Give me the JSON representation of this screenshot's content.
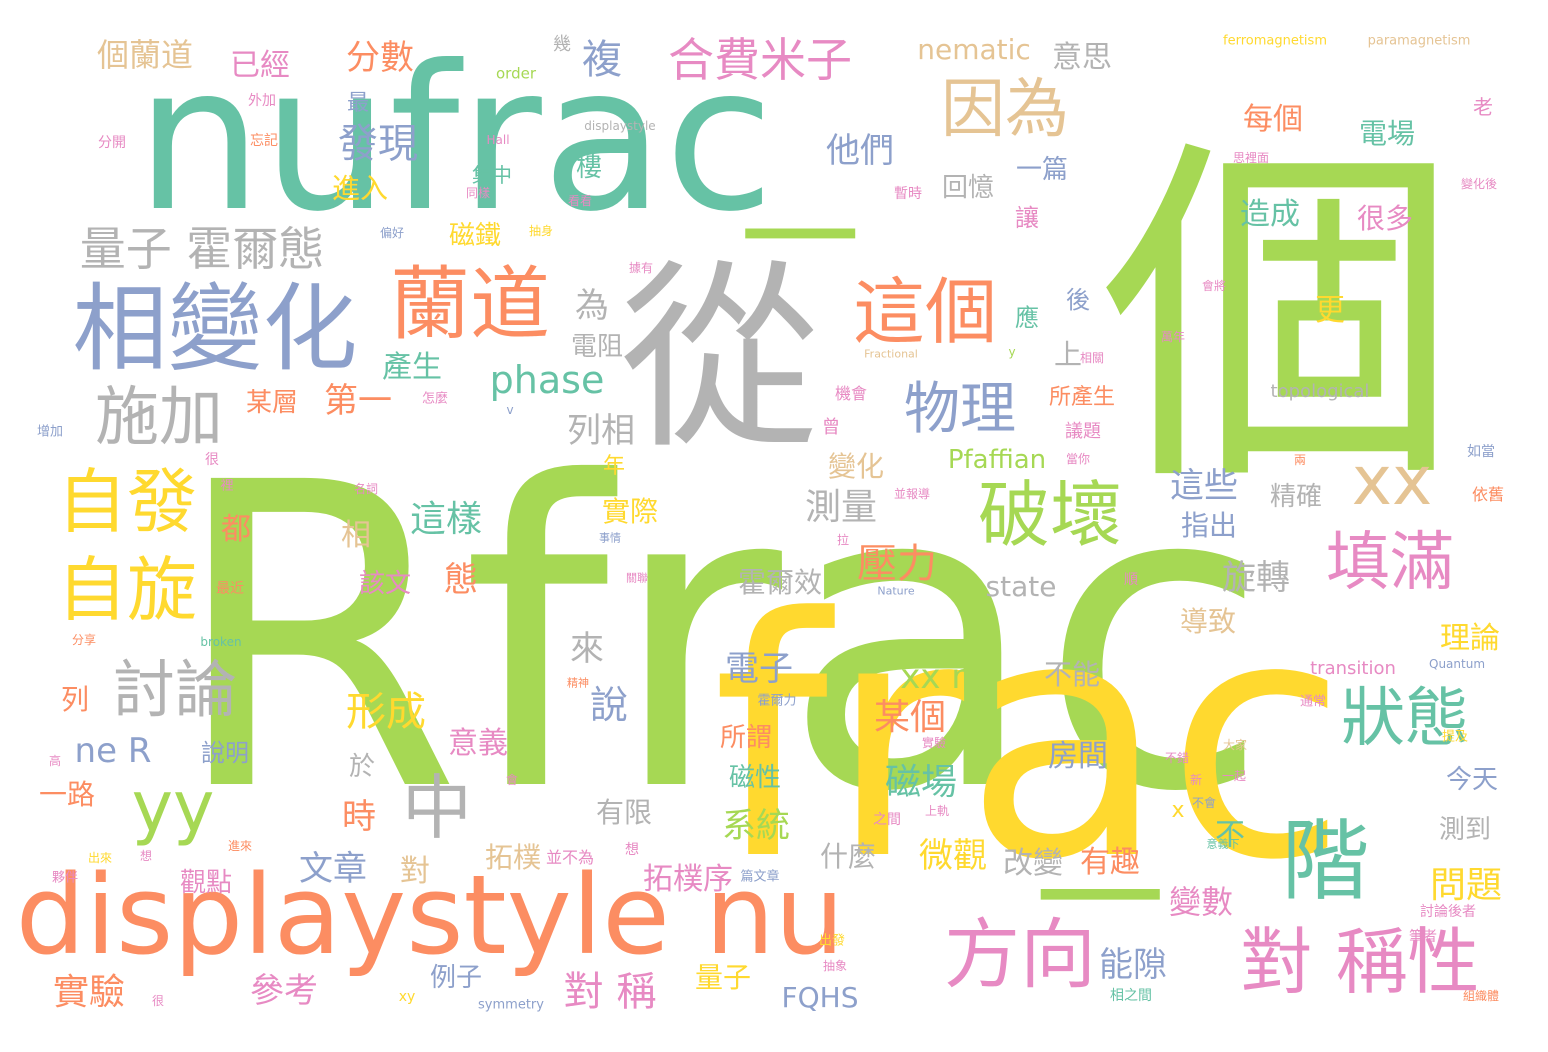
{
  "palette": {
    "green": "#a6d854",
    "teal": "#66c2a5",
    "yellow": "#ffd92f",
    "orange": "#fc8d62",
    "blue": "#8da0cb",
    "pink": "#e78ac3",
    "tan": "#e5c494",
    "gray": "#b3b3b3"
  },
  "words": [
    {
      "text": "個",
      "color": "green"
    },
    {
      "text": "Rfrac",
      "color": "green"
    },
    {
      "text": "frac",
      "color": "yellow"
    },
    {
      "text": "nufrac",
      "color": "teal"
    },
    {
      "text": "從",
      "color": "gray"
    },
    {
      "text": "一",
      "color": "green"
    },
    {
      "text": "一",
      "color": "green"
    },
    {
      "text": "displaystyle nu",
      "color": "orange"
    },
    {
      "text": "相變化",
      "color": "blue"
    },
    {
      "text": "蘭道",
      "color": "orange"
    },
    {
      "text": "這個",
      "color": "orange"
    },
    {
      "text": "破壞",
      "color": "green"
    },
    {
      "text": "方向",
      "color": "pink"
    },
    {
      "text": "對 稱性",
      "color": "pink"
    },
    {
      "text": "xx",
      "color": "tan"
    },
    {
      "text": "因為",
      "color": "tan"
    },
    {
      "text": "物理",
      "color": "blue"
    },
    {
      "text": "中",
      "color": "gray"
    },
    {
      "text": "yy",
      "color": "green"
    },
    {
      "text": "自發",
      "color": "yellow"
    },
    {
      "text": "自旋",
      "color": "yellow"
    },
    {
      "text": "施加",
      "color": "gray"
    },
    {
      "text": "討論",
      "color": "gray"
    },
    {
      "text": "狀態",
      "color": "teal"
    },
    {
      "text": "填滿",
      "color": "pink"
    },
    {
      "text": "階",
      "color": "teal"
    },
    {
      "text": "量子 霍爾態",
      "color": "gray"
    },
    {
      "text": "合費米子",
      "color": "pink"
    },
    {
      "text": "發現",
      "color": "blue"
    },
    {
      "text": "複",
      "color": "blue"
    },
    {
      "text": "分數",
      "color": "orange"
    },
    {
      "text": "已經",
      "color": "pink"
    },
    {
      "text": "個蘭道",
      "color": "tan"
    },
    {
      "text": "nematic",
      "color": "tan"
    },
    {
      "text": "意思",
      "color": "gray"
    },
    {
      "text": "他們",
      "color": "blue"
    },
    {
      "text": "回憶",
      "color": "gray"
    },
    {
      "text": "一篇",
      "color": "blue"
    },
    {
      "text": "每個",
      "color": "orange"
    },
    {
      "text": "電場",
      "color": "teal"
    },
    {
      "text": "造成",
      "color": "teal"
    },
    {
      "text": "很多",
      "color": "pink"
    },
    {
      "text": "更",
      "color": "yellow"
    },
    {
      "text": "phase",
      "color": "teal"
    },
    {
      "text": "為",
      "color": "gray"
    },
    {
      "text": "電阻",
      "color": "gray"
    },
    {
      "text": "產生",
      "color": "teal"
    },
    {
      "text": "某層",
      "color": "orange"
    },
    {
      "text": "第一",
      "color": "orange"
    },
    {
      "text": "列相",
      "color": "gray"
    },
    {
      "text": "ne R",
      "color": "blue"
    },
    {
      "text": "xx ne",
      "color": "green"
    },
    {
      "text": "壓力",
      "color": "orange"
    },
    {
      "text": "這些",
      "color": "blue"
    },
    {
      "text": "精確",
      "color": "gray"
    },
    {
      "text": "指出",
      "color": "blue"
    },
    {
      "text": "旋轉",
      "color": "gray"
    },
    {
      "text": "這樣",
      "color": "teal"
    },
    {
      "text": "變化",
      "color": "tan"
    },
    {
      "text": "Pfaffian",
      "color": "green"
    },
    {
      "text": "測量",
      "color": "gray"
    },
    {
      "text": "實際",
      "color": "yellow"
    },
    {
      "text": "霍爾效",
      "color": "gray"
    },
    {
      "text": "state",
      "color": "gray"
    },
    {
      "text": "理論",
      "color": "yellow"
    },
    {
      "text": "電子",
      "color": "blue"
    },
    {
      "text": "形成",
      "color": "yellow"
    },
    {
      "text": "某個",
      "color": "orange"
    },
    {
      "text": "磁場",
      "color": "teal"
    },
    {
      "text": "微觀",
      "color": "yellow"
    },
    {
      "text": "改變",
      "color": "gray"
    },
    {
      "text": "有趣",
      "color": "orange"
    },
    {
      "text": "系統",
      "color": "green"
    },
    {
      "text": "問題",
      "color": "yellow"
    },
    {
      "text": "變數",
      "color": "pink"
    },
    {
      "text": "文章",
      "color": "blue"
    },
    {
      "text": "觀點",
      "color": "pink"
    },
    {
      "text": "拓樸序",
      "color": "pink"
    },
    {
      "text": "能隙",
      "color": "blue"
    },
    {
      "text": "實驗",
      "color": "orange"
    },
    {
      "text": "參考",
      "color": "pink"
    },
    {
      "text": "對 稱",
      "color": "pink"
    },
    {
      "text": "FQHS",
      "color": "blue"
    },
    {
      "text": "量子",
      "color": "yellow"
    },
    {
      "text": "例子",
      "color": "blue"
    },
    {
      "text": "topological",
      "color": "gray"
    },
    {
      "text": "transition",
      "color": "pink"
    },
    {
      "text": "ferromagnetism",
      "color": "yellow"
    },
    {
      "text": "paramagnetism",
      "color": "tan"
    },
    {
      "text": "order",
      "color": "green"
    },
    {
      "text": "Fractional",
      "color": "tan"
    },
    {
      "text": "Quantum",
      "color": "blue"
    },
    {
      "text": "Nature",
      "color": "blue"
    },
    {
      "text": "symmetry",
      "color": "blue"
    },
    {
      "text": "broken",
      "color": "teal"
    },
    {
      "text": "displaystyle",
      "color": "gray"
    },
    {
      "text": "Hall",
      "color": "pink"
    },
    {
      "text": "磁鐵",
      "color": "yellow"
    },
    {
      "text": "進入",
      "color": "yellow"
    },
    {
      "text": "集中",
      "color": "teal"
    },
    {
      "text": "樓",
      "color": "teal"
    },
    {
      "text": "讓",
      "color": "pink"
    },
    {
      "text": "應",
      "color": "teal"
    },
    {
      "text": "後",
      "color": "blue"
    },
    {
      "text": "上",
      "color": "gray"
    },
    {
      "text": "相",
      "color": "tan"
    },
    {
      "text": "態",
      "color": "orange"
    },
    {
      "text": "都",
      "color": "orange"
    },
    {
      "text": "年",
      "color": "yellow"
    },
    {
      "text": "來",
      "color": "gray"
    },
    {
      "text": "說",
      "color": "blue"
    },
    {
      "text": "不",
      "color": "teal"
    },
    {
      "text": "不能",
      "color": "gray"
    },
    {
      "text": "所謂",
      "color": "orange"
    },
    {
      "text": "磁性",
      "color": "teal"
    },
    {
      "text": "該文",
      "color": "pink"
    },
    {
      "text": "意義",
      "color": "pink"
    },
    {
      "text": "說明",
      "color": "blue"
    },
    {
      "text": "一路",
      "color": "orange"
    },
    {
      "text": "時",
      "color": "orange"
    },
    {
      "text": "對",
      "color": "tan"
    },
    {
      "text": "於",
      "color": "gray"
    },
    {
      "text": "列",
      "color": "orange"
    },
    {
      "text": "拓樸",
      "color": "tan"
    },
    {
      "text": "有限",
      "color": "gray"
    },
    {
      "text": "什麼",
      "color": "gray"
    },
    {
      "text": "導致",
      "color": "tan"
    },
    {
      "text": "今天",
      "color": "blue"
    },
    {
      "text": "測到",
      "color": "gray"
    },
    {
      "text": "房間",
      "color": "blue"
    },
    {
      "text": "最",
      "color": "blue"
    },
    {
      "text": "幾",
      "color": "gray"
    },
    {
      "text": "外加",
      "color": "pink"
    },
    {
      "text": "分開",
      "color": "pink"
    },
    {
      "text": "忘記",
      "color": "orange"
    },
    {
      "text": "看看",
      "color": "pink"
    },
    {
      "text": "抽身",
      "color": "yellow"
    },
    {
      "text": "暫時",
      "color": "pink"
    },
    {
      "text": "偏好",
      "color": "blue"
    },
    {
      "text": "增加",
      "color": "blue"
    },
    {
      "text": "高",
      "color": "pink"
    },
    {
      "text": "分享",
      "color": "orange"
    },
    {
      "text": "出來",
      "color": "yellow"
    },
    {
      "text": "夥伴",
      "color": "pink"
    },
    {
      "text": "進來",
      "color": "orange"
    },
    {
      "text": "最近",
      "color": "orange"
    },
    {
      "text": "名詞",
      "color": "pink"
    },
    {
      "text": "事情",
      "color": "blue"
    },
    {
      "text": "關聯",
      "color": "pink"
    },
    {
      "text": "精神",
      "color": "orange"
    },
    {
      "text": "並不為",
      "color": "pink"
    },
    {
      "text": "篇文章",
      "color": "blue"
    },
    {
      "text": "之間",
      "color": "pink"
    },
    {
      "text": "順",
      "color": "pink"
    },
    {
      "text": "相之間",
      "color": "teal"
    },
    {
      "text": "討論後者",
      "color": "pink"
    },
    {
      "text": "筆者",
      "color": "pink"
    },
    {
      "text": "如當",
      "color": "blue"
    },
    {
      "text": "依舊",
      "color": "orange"
    },
    {
      "text": "提及",
      "color": "yellow"
    },
    {
      "text": "通常",
      "color": "pink"
    },
    {
      "text": "不錯",
      "color": "pink"
    },
    {
      "text": "不會",
      "color": "blue"
    },
    {
      "text": "意義下",
      "color": "teal"
    },
    {
      "text": "一起",
      "color": "pink"
    },
    {
      "text": "大家",
      "color": "tan"
    },
    {
      "text": "抽象",
      "color": "pink"
    },
    {
      "text": "出發",
      "color": "yellow"
    },
    {
      "text": "怎麼",
      "color": "pink"
    },
    {
      "text": "機會",
      "color": "pink"
    },
    {
      "text": "曾",
      "color": "pink"
    },
    {
      "text": "所產生",
      "color": "orange"
    },
    {
      "text": "議題",
      "color": "pink"
    },
    {
      "text": "會將",
      "color": "pink"
    },
    {
      "text": "萬年",
      "color": "pink"
    },
    {
      "text": "老",
      "color": "pink"
    },
    {
      "text": "x",
      "color": "yellow"
    },
    {
      "text": "y",
      "color": "green"
    },
    {
      "text": "v",
      "color": "blue"
    },
    {
      "text": "xy",
      "color": "yellow"
    },
    {
      "text": "會",
      "color": "pink"
    },
    {
      "text": "新",
      "color": "pink"
    },
    {
      "text": "想",
      "color": "pink"
    },
    {
      "text": "拉",
      "color": "pink"
    },
    {
      "text": "很",
      "color": "pink"
    },
    {
      "text": "裡",
      "color": "pink"
    },
    {
      "text": "霍爾力",
      "color": "blue"
    },
    {
      "text": "相關",
      "color": "pink"
    },
    {
      "text": "很",
      "color": "pink"
    },
    {
      "text": "組織體",
      "color": "orange"
    },
    {
      "text": "實驗",
      "color": "pink"
    },
    {
      "text": "上軌",
      "color": "pink"
    },
    {
      "text": "思裡面",
      "color": "pink"
    },
    {
      "text": "變化後",
      "color": "pink"
    },
    {
      "text": "兩",
      "color": "orange"
    },
    {
      "text": "並報導",
      "color": "pink"
    },
    {
      "text": "當你",
      "color": "pink"
    },
    {
      "text": "同樣",
      "color": "pink"
    },
    {
      "text": "想",
      "color": "pink"
    },
    {
      "text": "據有",
      "color": "pink"
    },
    {
      "text": "將拓樸",
      "color": "pink"
    },
    {
      "text": "說",
      "color": "pink"
    }
  ]
}
